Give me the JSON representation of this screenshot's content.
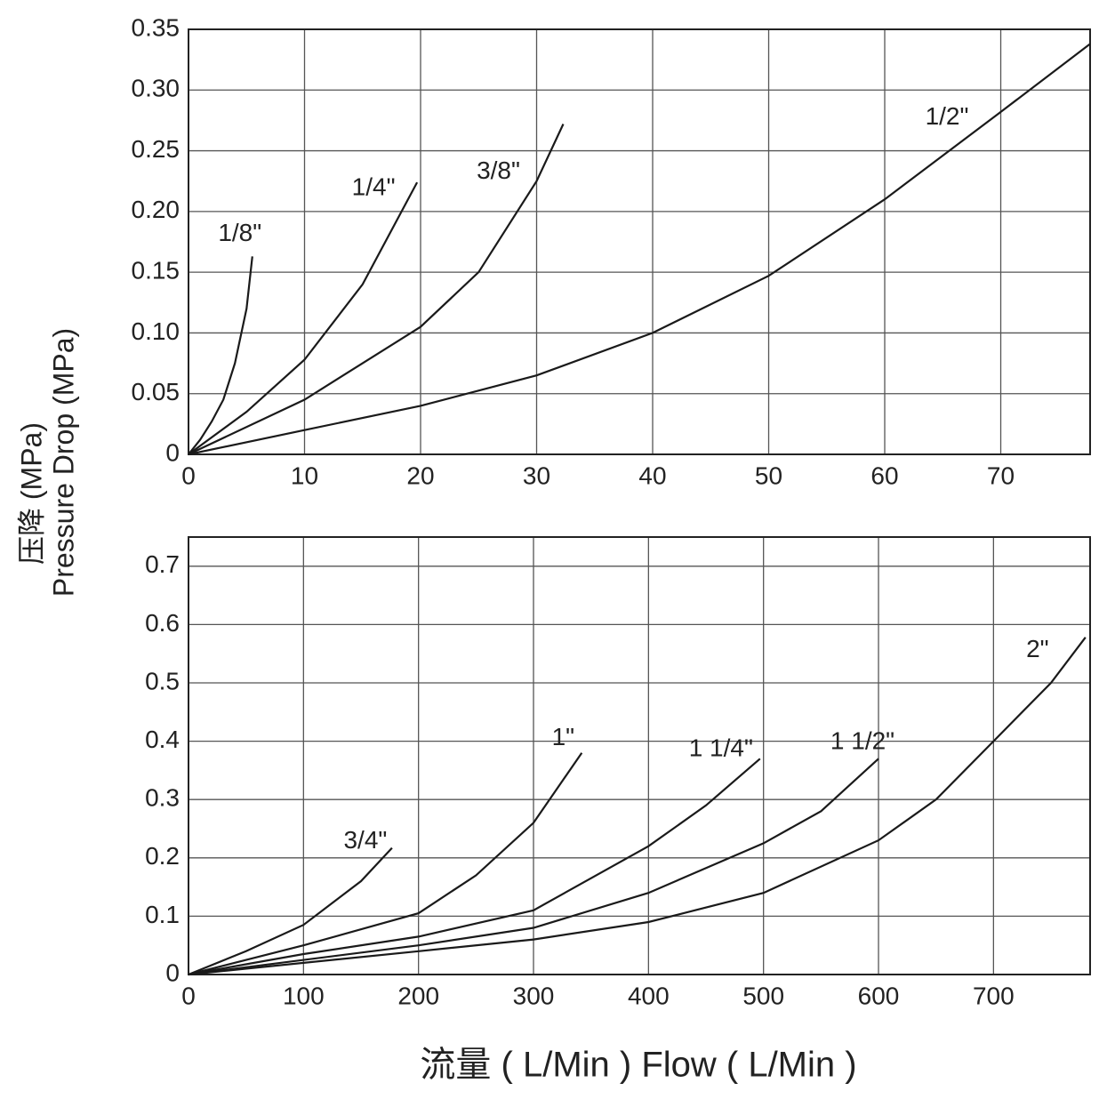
{
  "ylabel": [
    "压降 (MPa)",
    "Pressure Drop (MPa)"
  ],
  "xlabel": "流量 ( L/Min )    Flow ( L/Min )",
  "chart_data": [
    {
      "type": "line",
      "xlim": [
        0,
        77.7
      ],
      "ylim": [
        0,
        0.35
      ],
      "xticks": [
        0,
        10,
        20,
        30,
        40,
        50,
        60,
        70
      ],
      "yticks": [
        0,
        0.05,
        {
          "value": 0.1,
          "label": "0.10"
        },
        0.15,
        {
          "value": 0.2,
          "label": "0.20"
        },
        0.25,
        {
          "value": 0.3,
          "label": "0.30"
        },
        0.35
      ],
      "grid": true,
      "series": [
        {
          "name": "1/8\"",
          "color": "#1a1a1a",
          "x": [
            0,
            1,
            2,
            3,
            4,
            5,
            5.5
          ],
          "values": [
            0,
            0.012,
            0.027,
            0.045,
            0.075,
            0.12,
            0.163
          ]
        },
        {
          "name": "1/4\"",
          "color": "#1a1a1a",
          "x": [
            0,
            5,
            10,
            15,
            19.7
          ],
          "values": [
            0,
            0.035,
            0.078,
            0.14,
            0.224
          ]
        },
        {
          "name": "3/8\"",
          "color": "#1a1a1a",
          "x": [
            0,
            10,
            20,
            25,
            30,
            32.3
          ],
          "values": [
            0,
            0.045,
            0.105,
            0.15,
            0.225,
            0.272
          ]
        },
        {
          "name": "1/2\"",
          "color": "#1a1a1a",
          "x": [
            0,
            10,
            20,
            30,
            40,
            50,
            60,
            70,
            77.7
          ],
          "values": [
            0,
            0.02,
            0.04,
            0.065,
            0.1,
            0.147,
            0.21,
            0.282,
            0.338
          ]
        }
      ]
    },
    {
      "type": "line",
      "xlim": [
        0,
        784
      ],
      "ylim": [
        0,
        0.75
      ],
      "xticks": [
        0,
        100,
        200,
        300,
        400,
        500,
        600,
        700
      ],
      "yticks": [
        0,
        0.1,
        0.2,
        0.3,
        0.4,
        0.5,
        0.6,
        0.7
      ],
      "grid": true,
      "series": [
        {
          "name": "3/4\"",
          "color": "#1a1a1a",
          "x": [
            0,
            50,
            100,
            150,
            177
          ],
          "values": [
            0,
            0.04,
            0.085,
            0.16,
            0.217
          ]
        },
        {
          "name": "1\"",
          "color": "#1a1a1a",
          "x": [
            0,
            100,
            200,
            250,
            300,
            342
          ],
          "values": [
            0,
            0.05,
            0.105,
            0.17,
            0.26,
            0.38
          ]
        },
        {
          "name": "1 1/4\"",
          "color": "#1a1a1a",
          "x": [
            0,
            100,
            200,
            300,
            400,
            450,
            497
          ],
          "values": [
            0,
            0.035,
            0.065,
            0.11,
            0.22,
            0.29,
            0.37
          ]
        },
        {
          "name": "1 1/2\"",
          "color": "#1a1a1a",
          "x": [
            0,
            200,
            300,
            400,
            500,
            550,
            600
          ],
          "values": [
            0,
            0.05,
            0.08,
            0.14,
            0.225,
            0.28,
            0.37
          ]
        },
        {
          "name": "2\"",
          "color": "#1a1a1a",
          "x": [
            0,
            200,
            300,
            400,
            500,
            600,
            650,
            700,
            750,
            780
          ],
          "values": [
            0,
            0.04,
            0.06,
            0.09,
            0.14,
            0.23,
            0.3,
            0.4,
            0.5,
            0.578
          ]
        }
      ]
    }
  ]
}
